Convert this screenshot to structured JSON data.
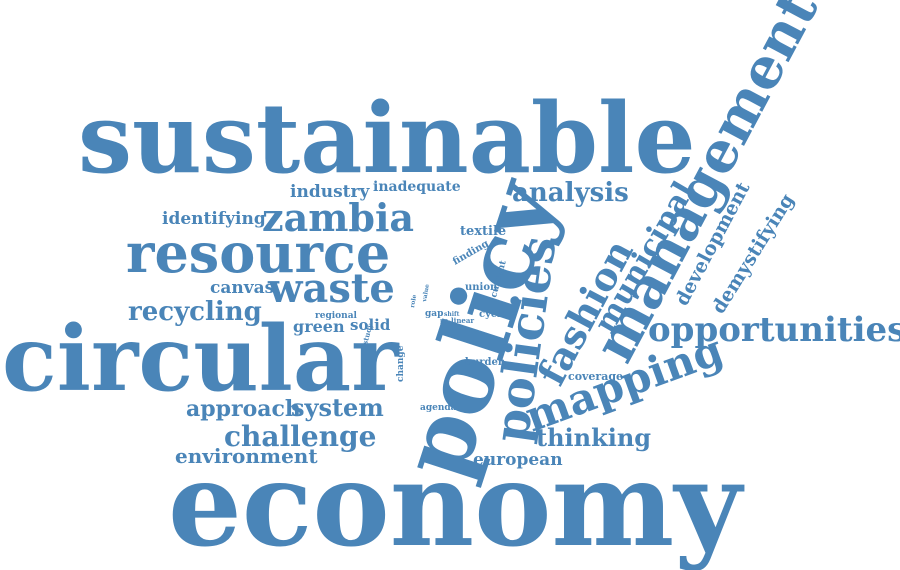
{
  "colors": {
    "word": "#4A85B8",
    "background": "#ffffff"
  },
  "words": [
    "sustainable",
    "economy",
    "circular",
    "policy",
    "resource",
    "zambia",
    "management",
    "policies",
    "waste",
    "mapping",
    "fashion",
    "opportunities",
    "municipal",
    "development",
    "demystifying",
    "analysis",
    "recycling",
    "challenge",
    "thinking",
    "system",
    "approach",
    "environment",
    "european",
    "industry",
    "inadequate",
    "identifying",
    "canvas",
    "textile",
    "green",
    "solid",
    "regional",
    "finding",
    "union",
    "cycle",
    "coverage",
    "burden",
    "agenda",
    "change",
    "gap",
    "current",
    "linear",
    "shift",
    "value",
    "study",
    "role",
    "life"
  ]
}
